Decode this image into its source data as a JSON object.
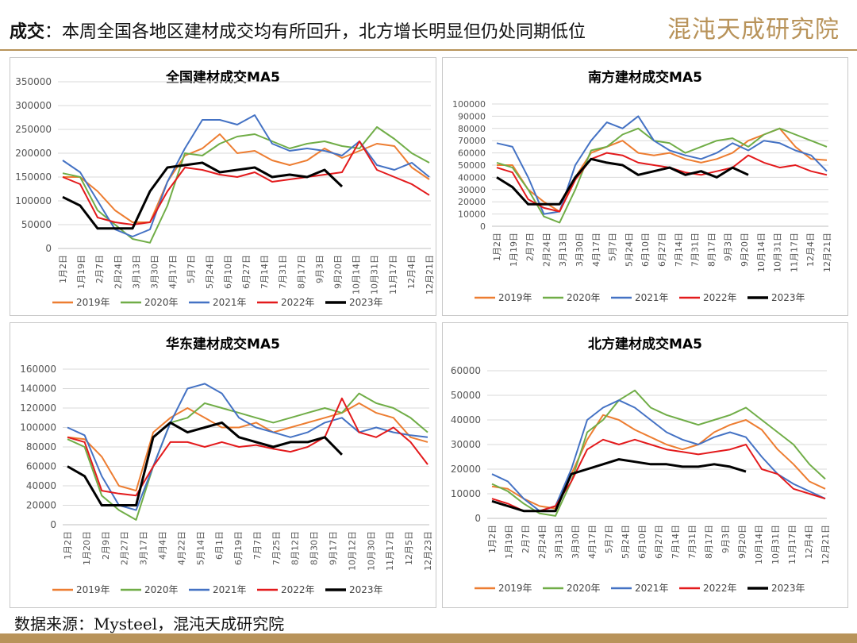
{
  "header": {
    "title_bold": "成交",
    "title_rest": "：本周全国各地区建材成交均有所回升，北方增长明显但仍处同期低位",
    "brand": "混沌天成研究院",
    "brand_color": "#b8935a"
  },
  "footer": {
    "source": "数据来源：Mysteel，混沌天成研究院"
  },
  "series_meta": [
    {
      "name": "2019年",
      "color": "#ed7d31"
    },
    {
      "name": "2020年",
      "color": "#70ad47"
    },
    {
      "name": "2021年",
      "color": "#4472c4"
    },
    {
      "name": "2022年",
      "color": "#e31a1c"
    },
    {
      "name": "2023年",
      "color": "#000000"
    }
  ],
  "chart_data": [
    {
      "type": "line",
      "title": "全国建材成交MA5",
      "x_ticks": [
        "1月2日",
        "1月19日",
        "2月7日",
        "2月24日",
        "3月13日",
        "3月30日",
        "4月17日",
        "5月7日",
        "5月24日",
        "6月10日",
        "6月27日",
        "7月14日",
        "7月31日",
        "8月17日",
        "9月3日",
        "9月20日",
        "10月14日",
        "10月31日",
        "11月17日",
        "12月4日",
        "12月21日"
      ],
      "ylim": [
        0,
        350000
      ],
      "yticks": [
        0,
        50000,
        100000,
        150000,
        200000,
        250000,
        300000,
        350000
      ],
      "grid": true,
      "legend": "bottom",
      "series": [
        {
          "name": "2019年",
          "color": "#ed7d31",
          "values": [
            150000,
            150000,
            120000,
            80000,
            55000,
            55000,
            140000,
            195000,
            210000,
            240000,
            200000,
            205000,
            185000,
            175000,
            185000,
            210000,
            190000,
            205000,
            220000,
            215000,
            170000,
            145000
          ]
        },
        {
          "name": "2020年",
          "color": "#70ad47",
          "values": [
            158000,
            150000,
            80000,
            50000,
            20000,
            12000,
            90000,
            200000,
            195000,
            220000,
            235000,
            240000,
            225000,
            210000,
            220000,
            225000,
            215000,
            210000,
            255000,
            230000,
            200000,
            180000
          ]
        },
        {
          "name": "2021年",
          "color": "#4472c4",
          "values": [
            185000,
            160000,
            100000,
            40000,
            25000,
            40000,
            140000,
            210000,
            270000,
            270000,
            260000,
            280000,
            220000,
            205000,
            210000,
            205000,
            195000,
            225000,
            175000,
            165000,
            180000,
            150000
          ]
        },
        {
          "name": "2022年",
          "color": "#e31a1c",
          "values": [
            150000,
            135000,
            65000,
            55000,
            50000,
            55000,
            120000,
            170000,
            165000,
            155000,
            150000,
            160000,
            140000,
            145000,
            150000,
            155000,
            160000,
            225000,
            165000,
            150000,
            135000,
            112000
          ]
        },
        {
          "name": "2023年",
          "color": "#000000",
          "values": [
            108000,
            90000,
            42000,
            42000,
            42000,
            120000,
            170000,
            175000,
            180000,
            160000,
            165000,
            170000,
            150000,
            155000,
            150000,
            165000,
            130000
          ]
        }
      ]
    },
    {
      "type": "line",
      "title": "南方建材成交MA5",
      "x_ticks": [
        "1月2日",
        "1月19日",
        "2月7日",
        "2月24日",
        "3月13日",
        "3月30日",
        "4月17日",
        "5月7日",
        "5月24日",
        "6月10日",
        "6月27日",
        "7月14日",
        "7月31日",
        "8月17日",
        "9月3日",
        "9月20日",
        "10月14日",
        "10月31日",
        "11月17日",
        "12月4日",
        "12月21日"
      ],
      "ylim": [
        0,
        100000
      ],
      "yticks": [
        0,
        10000,
        20000,
        30000,
        40000,
        50000,
        60000,
        70000,
        80000,
        90000,
        100000
      ],
      "grid": true,
      "legend": "bottom",
      "series": [
        {
          "name": "2019年",
          "color": "#ed7d31",
          "values": [
            50000,
            50000,
            30000,
            20000,
            12000,
            40000,
            60000,
            65000,
            70000,
            60000,
            58000,
            60000,
            55000,
            52000,
            55000,
            60000,
            70000,
            75000,
            80000,
            65000,
            55000,
            54000
          ]
        },
        {
          "name": "2020年",
          "color": "#70ad47",
          "values": [
            52000,
            48000,
            30000,
            8000,
            3000,
            30000,
            62000,
            65000,
            75000,
            80000,
            70000,
            68000,
            60000,
            65000,
            70000,
            72000,
            65000,
            75000,
            80000,
            75000,
            70000,
            65000
          ]
        },
        {
          "name": "2021年",
          "color": "#4472c4",
          "values": [
            68000,
            65000,
            40000,
            10000,
            12000,
            50000,
            70000,
            85000,
            80000,
            90000,
            70000,
            62000,
            58000,
            55000,
            60000,
            68000,
            62000,
            70000,
            68000,
            62000,
            58000,
            45000
          ]
        },
        {
          "name": "2022年",
          "color": "#e31a1c",
          "values": [
            48000,
            44000,
            22000,
            15000,
            12000,
            38000,
            55000,
            60000,
            58000,
            52000,
            50000,
            48000,
            44000,
            42000,
            45000,
            48000,
            58000,
            52000,
            48000,
            50000,
            45000,
            42000
          ]
        },
        {
          "name": "2023年",
          "color": "#000000",
          "values": [
            40000,
            32000,
            18000,
            18000,
            18000,
            40000,
            55000,
            52000,
            50000,
            42000,
            45000,
            48000,
            42000,
            45000,
            40000,
            48000,
            42000
          ]
        }
      ]
    },
    {
      "type": "line",
      "title": "华东建材成交MA5",
      "x_ticks": [
        "1月2日",
        "1月20日",
        "2月9日",
        "2月27日",
        "3月17日",
        "4月4日",
        "4月22日",
        "5月14日",
        "6月1日",
        "6月19日",
        "7月7日",
        "7月25日",
        "8月12日",
        "8月30日",
        "9月17日",
        "10月12日",
        "10月30日",
        "11月17日",
        "12月5日",
        "12月23日"
      ],
      "ylim": [
        0,
        160000
      ],
      "yticks": [
        0,
        20000,
        40000,
        60000,
        80000,
        100000,
        120000,
        140000,
        160000
      ],
      "grid": true,
      "legend": "bottom",
      "series": [
        {
          "name": "2019年",
          "color": "#ed7d31",
          "values": [
            90000,
            88000,
            70000,
            40000,
            35000,
            95000,
            110000,
            120000,
            110000,
            100000,
            100000,
            105000,
            95000,
            100000,
            105000,
            110000,
            115000,
            125000,
            115000,
            110000,
            90000,
            85000
          ]
        },
        {
          "name": "2020年",
          "color": "#70ad47",
          "values": [
            88000,
            80000,
            30000,
            15000,
            5000,
            60000,
            105000,
            110000,
            125000,
            120000,
            115000,
            110000,
            105000,
            110000,
            115000,
            120000,
            115000,
            135000,
            125000,
            120000,
            110000,
            95000
          ]
        },
        {
          "name": "2021年",
          "color": "#4472c4",
          "values": [
            100000,
            92000,
            50000,
            20000,
            15000,
            60000,
            105000,
            140000,
            145000,
            135000,
            110000,
            100000,
            95000,
            90000,
            95000,
            105000,
            110000,
            95000,
            100000,
            95000,
            92000,
            90000
          ]
        },
        {
          "name": "2022年",
          "color": "#e31a1c",
          "values": [
            90000,
            85000,
            35000,
            32000,
            30000,
            60000,
            85000,
            85000,
            80000,
            85000,
            80000,
            82000,
            78000,
            75000,
            80000,
            90000,
            130000,
            95000,
            90000,
            100000,
            85000,
            62000
          ]
        },
        {
          "name": "2023年",
          "color": "#000000",
          "values": [
            60000,
            50000,
            20000,
            20000,
            20000,
            90000,
            105000,
            95000,
            100000,
            105000,
            90000,
            85000,
            80000,
            85000,
            85000,
            90000,
            72000
          ]
        }
      ]
    },
    {
      "type": "line",
      "title": "北方建材成交MA5",
      "x_ticks": [
        "1月2日",
        "1月19日",
        "2月7日",
        "2月24日",
        "3月13日",
        "3月30日",
        "4月17日",
        "5月7日",
        "5月24日",
        "6月10日",
        "6月27日",
        "7月14日",
        "7月31日",
        "8月17日",
        "9月3日",
        "9月20日",
        "10月14日",
        "10月31日",
        "11月17日",
        "12月4日",
        "12月21日"
      ],
      "ylim": [
        0,
        60000
      ],
      "yticks": [
        0,
        10000,
        20000,
        30000,
        40000,
        50000,
        60000
      ],
      "grid": true,
      "legend": "bottom",
      "series": [
        {
          "name": "2019年",
          "color": "#ed7d31",
          "values": [
            13000,
            12000,
            8000,
            5000,
            4000,
            18000,
            32000,
            42000,
            40000,
            36000,
            33000,
            30000,
            28000,
            30000,
            35000,
            38000,
            40000,
            36000,
            28000,
            22000,
            15000,
            12000
          ]
        },
        {
          "name": "2020年",
          "color": "#70ad47",
          "values": [
            14000,
            11000,
            6000,
            2000,
            1000,
            15000,
            35000,
            40000,
            48000,
            52000,
            45000,
            42000,
            40000,
            38000,
            40000,
            42000,
            45000,
            40000,
            35000,
            30000,
            22000,
            16000
          ]
        },
        {
          "name": "2021年",
          "color": "#4472c4",
          "values": [
            18000,
            15000,
            8000,
            3000,
            5000,
            20000,
            40000,
            45000,
            48000,
            45000,
            40000,
            35000,
            32000,
            30000,
            33000,
            35000,
            33000,
            25000,
            18000,
            14000,
            11000,
            8000
          ]
        },
        {
          "name": "2022年",
          "color": "#e31a1c",
          "values": [
            8000,
            6000,
            3000,
            3000,
            5000,
            15000,
            28000,
            32000,
            30000,
            32000,
            30000,
            28000,
            27000,
            26000,
            27000,
            28000,
            30000,
            20000,
            18000,
            12000,
            10000,
            8000
          ]
        },
        {
          "name": "2023年",
          "color": "#000000",
          "values": [
            7000,
            5000,
            3000,
            3000,
            3000,
            18000,
            20000,
            22000,
            24000,
            23000,
            22000,
            22000,
            21000,
            21000,
            22000,
            21000,
            19000
          ]
        }
      ]
    }
  ]
}
